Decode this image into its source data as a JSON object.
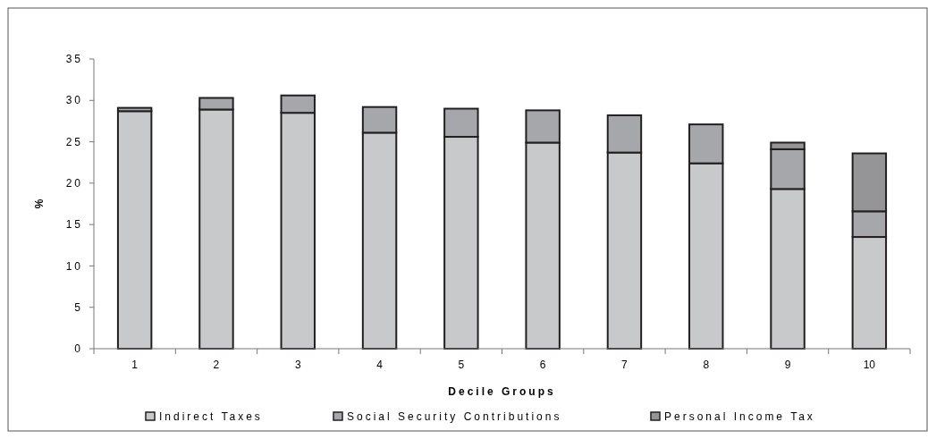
{
  "chart_data": {
    "type": "bar",
    "stacked": true,
    "xlabel": "Decile Groups",
    "ylabel": "%",
    "categories": [
      "1",
      "2",
      "3",
      "4",
      "5",
      "6",
      "7",
      "8",
      "9",
      "10"
    ],
    "series": [
      {
        "name": "Indirect Taxes",
        "color": "#c8c9cb",
        "values": [
          28.7,
          28.9,
          28.5,
          26.1,
          25.6,
          24.9,
          23.7,
          22.4,
          19.3,
          13.5
        ]
      },
      {
        "name": "Social Security Contributions",
        "color": "#a6a7aa",
        "values": [
          0.4,
          1.4,
          2.1,
          3.1,
          3.4,
          3.9,
          4.5,
          4.7,
          4.8,
          3.1
        ]
      },
      {
        "name": "Personal Income Tax",
        "color": "#959597",
        "values": [
          0,
          0,
          0,
          0,
          0,
          0,
          0,
          0,
          0.8,
          7.0
        ]
      }
    ],
    "ylim": [
      0,
      35
    ],
    "yticks": [
      0,
      5,
      10,
      15,
      20,
      25,
      30,
      35
    ],
    "grid": false,
    "legend": "bottom"
  }
}
